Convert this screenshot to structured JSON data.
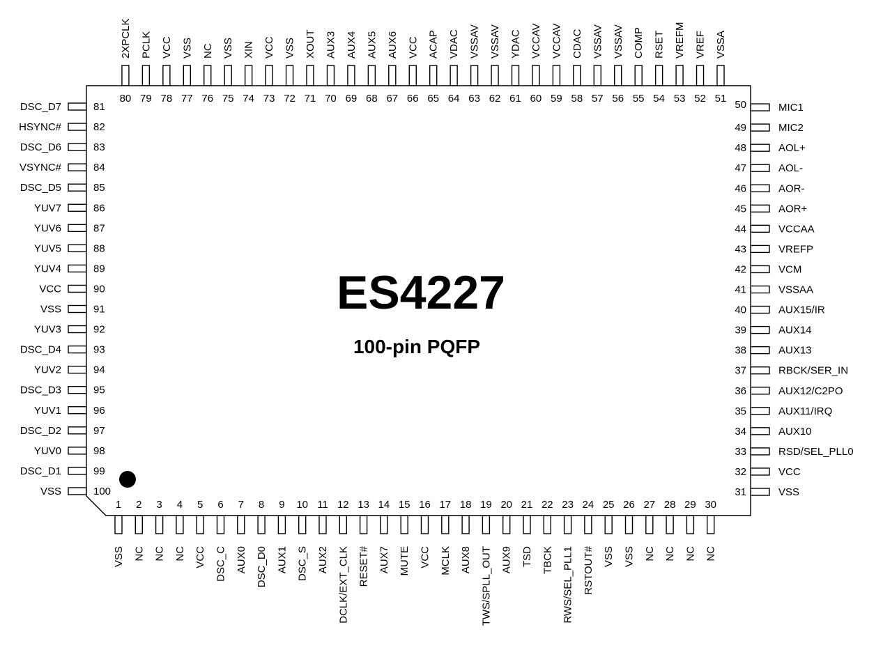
{
  "chip": {
    "name": "ES4227",
    "package": "100-pin PQFP"
  },
  "pins": {
    "bottom": [
      {
        "n": "1",
        "name": "VSS"
      },
      {
        "n": "2",
        "name": "NC"
      },
      {
        "n": "3",
        "name": "NC"
      },
      {
        "n": "4",
        "name": "NC"
      },
      {
        "n": "5",
        "name": "VCC"
      },
      {
        "n": "6",
        "name": "DSC_C"
      },
      {
        "n": "7",
        "name": "AUX0"
      },
      {
        "n": "8",
        "name": "DSC_D0"
      },
      {
        "n": "9",
        "name": "AUX1"
      },
      {
        "n": "10",
        "name": "DSC_S"
      },
      {
        "n": "11",
        "name": "AUX2"
      },
      {
        "n": "12",
        "name": "DCLK/EXT_CLK"
      },
      {
        "n": "13",
        "name": "RESET#"
      },
      {
        "n": "14",
        "name": "AUX7"
      },
      {
        "n": "15",
        "name": "MUTE"
      },
      {
        "n": "16",
        "name": "VCC"
      },
      {
        "n": "17",
        "name": "MCLK"
      },
      {
        "n": "18",
        "name": "AUX8"
      },
      {
        "n": "19",
        "name": "TWS/SPLL_OUT"
      },
      {
        "n": "20",
        "name": "AUX9"
      },
      {
        "n": "21",
        "name": "TSD"
      },
      {
        "n": "22",
        "name": "TBCK"
      },
      {
        "n": "23",
        "name": "RWS/SEL_PLL1"
      },
      {
        "n": "24",
        "name": "RSTOUT#"
      },
      {
        "n": "25",
        "name": "VSS"
      },
      {
        "n": "26",
        "name": "VSS"
      },
      {
        "n": "27",
        "name": "NC"
      },
      {
        "n": "28",
        "name": "NC"
      },
      {
        "n": "29",
        "name": "NC"
      },
      {
        "n": "30",
        "name": "NC"
      }
    ],
    "right": [
      {
        "n": "31",
        "name": "VSS"
      },
      {
        "n": "32",
        "name": "VCC"
      },
      {
        "n": "33",
        "name": "RSD/SEL_PLL0"
      },
      {
        "n": "34",
        "name": "AUX10"
      },
      {
        "n": "35",
        "name": "AUX11/IRQ"
      },
      {
        "n": "36",
        "name": "AUX12/C2PO"
      },
      {
        "n": "37",
        "name": "RBCK/SER_IN"
      },
      {
        "n": "38",
        "name": "AUX13"
      },
      {
        "n": "39",
        "name": "AUX14"
      },
      {
        "n": "40",
        "name": "AUX15/IR"
      },
      {
        "n": "41",
        "name": "VSSAA"
      },
      {
        "n": "42",
        "name": "VCM"
      },
      {
        "n": "43",
        "name": "VREFP"
      },
      {
        "n": "44",
        "name": "VCCAA"
      },
      {
        "n": "45",
        "name": "AOR+"
      },
      {
        "n": "46",
        "name": "AOR-"
      },
      {
        "n": "47",
        "name": "AOL-"
      },
      {
        "n": "48",
        "name": "AOL+"
      },
      {
        "n": "49",
        "name": "MIC2"
      },
      {
        "n": "50",
        "name": "MIC1"
      }
    ],
    "top": [
      {
        "n": "51",
        "name": "VSSA"
      },
      {
        "n": "52",
        "name": "VREF"
      },
      {
        "n": "53",
        "name": "VREFM"
      },
      {
        "n": "54",
        "name": "RSET"
      },
      {
        "n": "55",
        "name": "COMP"
      },
      {
        "n": "56",
        "name": "VSSAV"
      },
      {
        "n": "57",
        "name": "VSSAV"
      },
      {
        "n": "58",
        "name": "CDAC"
      },
      {
        "n": "59",
        "name": "VCCAV"
      },
      {
        "n": "60",
        "name": "VCCAV"
      },
      {
        "n": "61",
        "name": "YDAC"
      },
      {
        "n": "62",
        "name": "VSSAV"
      },
      {
        "n": "63",
        "name": "VSSAV"
      },
      {
        "n": "64",
        "name": "VDAC"
      },
      {
        "n": "65",
        "name": "ACAP"
      },
      {
        "n": "66",
        "name": "VCC"
      },
      {
        "n": "67",
        "name": "AUX6"
      },
      {
        "n": "68",
        "name": "AUX5"
      },
      {
        "n": "69",
        "name": "AUX4"
      },
      {
        "n": "70",
        "name": "AUX3"
      },
      {
        "n": "71",
        "name": "XOUT"
      },
      {
        "n": "72",
        "name": "VSS"
      },
      {
        "n": "73",
        "name": "VCC"
      },
      {
        "n": "74",
        "name": "XIN"
      },
      {
        "n": "75",
        "name": "VSS"
      },
      {
        "n": "76",
        "name": "NC"
      },
      {
        "n": "77",
        "name": "VSS"
      },
      {
        "n": "78",
        "name": "VCC"
      },
      {
        "n": "79",
        "name": "PCLK"
      },
      {
        "n": "80",
        "name": "2XPCLK"
      }
    ],
    "left": [
      {
        "n": "81",
        "name": "DSC_D7"
      },
      {
        "n": "82",
        "name": "HSYNC#"
      },
      {
        "n": "83",
        "name": "DSC_D6"
      },
      {
        "n": "84",
        "name": "VSYNC#"
      },
      {
        "n": "85",
        "name": "DSC_D5"
      },
      {
        "n": "86",
        "name": "YUV7"
      },
      {
        "n": "87",
        "name": "YUV6"
      },
      {
        "n": "88",
        "name": "YUV5"
      },
      {
        "n": "89",
        "name": "YUV4"
      },
      {
        "n": "90",
        "name": "VCC"
      },
      {
        "n": "91",
        "name": "VSS"
      },
      {
        "n": "92",
        "name": "YUV3"
      },
      {
        "n": "93",
        "name": "DSC_D4"
      },
      {
        "n": "94",
        "name": "YUV2"
      },
      {
        "n": "95",
        "name": "DSC_D3"
      },
      {
        "n": "96",
        "name": "YUV1"
      },
      {
        "n": "97",
        "name": "DSC_D2"
      },
      {
        "n": "98",
        "name": "YUV0"
      },
      {
        "n": "99",
        "name": "DSC_D1"
      },
      {
        "n": "100",
        "name": "VSS"
      }
    ]
  }
}
